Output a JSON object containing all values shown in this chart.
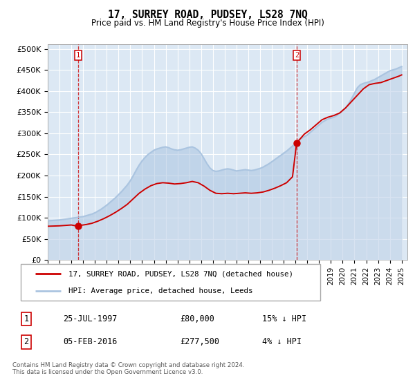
{
  "title": "17, SURREY ROAD, PUDSEY, LS28 7NQ",
  "subtitle": "Price paid vs. HM Land Registry's House Price Index (HPI)",
  "ylabel_ticks": [
    "£0",
    "£50K",
    "£100K",
    "£150K",
    "£200K",
    "£250K",
    "£300K",
    "£350K",
    "£400K",
    "£450K",
    "£500K"
  ],
  "ytick_values": [
    0,
    50000,
    100000,
    150000,
    200000,
    250000,
    300000,
    350000,
    400000,
    450000,
    500000
  ],
  "ylim": [
    0,
    510000
  ],
  "legend_line1": "17, SURREY ROAD, PUDSEY, LS28 7NQ (detached house)",
  "legend_line2": "HPI: Average price, detached house, Leeds",
  "footer": "Contains HM Land Registry data © Crown copyright and database right 2024.\nThis data is licensed under the Open Government Licence v3.0.",
  "hpi_color": "#aac4e0",
  "price_color": "#cc0000",
  "plot_bg": "#dce8f4",
  "grid_color": "#ffffff",
  "marker1_year": 1997.57,
  "marker1_price": 80000,
  "marker2_year": 2016.1,
  "marker2_price": 277500,
  "xmin_year": 1995.0,
  "xmax_year": 2025.5,
  "hpi_years": [
    1995.0,
    1995.25,
    1995.5,
    1995.75,
    1996.0,
    1996.25,
    1996.5,
    1996.75,
    1997.0,
    1997.25,
    1997.5,
    1997.75,
    1998.0,
    1998.25,
    1998.5,
    1998.75,
    1999.0,
    1999.25,
    1999.5,
    1999.75,
    2000.0,
    2000.25,
    2000.5,
    2000.75,
    2001.0,
    2001.25,
    2001.5,
    2001.75,
    2002.0,
    2002.25,
    2002.5,
    2002.75,
    2003.0,
    2003.25,
    2003.5,
    2003.75,
    2004.0,
    2004.25,
    2004.5,
    2004.75,
    2005.0,
    2005.25,
    2005.5,
    2005.75,
    2006.0,
    2006.25,
    2006.5,
    2006.75,
    2007.0,
    2007.25,
    2007.5,
    2007.75,
    2008.0,
    2008.25,
    2008.5,
    2008.75,
    2009.0,
    2009.25,
    2009.5,
    2009.75,
    2010.0,
    2010.25,
    2010.5,
    2010.75,
    2011.0,
    2011.25,
    2011.5,
    2011.75,
    2012.0,
    2012.25,
    2012.5,
    2012.75,
    2013.0,
    2013.25,
    2013.5,
    2013.75,
    2014.0,
    2014.25,
    2014.5,
    2014.75,
    2015.0,
    2015.25,
    2015.5,
    2015.75,
    2016.0,
    2016.25,
    2016.5,
    2016.75,
    2017.0,
    2017.25,
    2017.5,
    2017.75,
    2018.0,
    2018.25,
    2018.5,
    2018.75,
    2019.0,
    2019.25,
    2019.5,
    2019.75,
    2020.0,
    2020.25,
    2020.5,
    2020.75,
    2021.0,
    2021.25,
    2021.5,
    2021.75,
    2022.0,
    2022.25,
    2022.5,
    2022.75,
    2023.0,
    2023.25,
    2023.5,
    2023.75,
    2024.0,
    2024.25,
    2024.5,
    2024.75,
    2025.0
  ],
  "hpi_values": [
    93000,
    93500,
    94000,
    94500,
    95000,
    96000,
    97000,
    98000,
    99000,
    100000,
    101000,
    102000,
    103000,
    105000,
    107000,
    109000,
    112000,
    116000,
    120000,
    125000,
    130000,
    136000,
    142000,
    148000,
    155000,
    162000,
    170000,
    178000,
    188000,
    200000,
    213000,
    225000,
    235000,
    243000,
    250000,
    255000,
    260000,
    263000,
    265000,
    267000,
    268000,
    266000,
    263000,
    261000,
    260000,
    261000,
    263000,
    265000,
    267000,
    268000,
    265000,
    260000,
    252000,
    240000,
    228000,
    218000,
    212000,
    210000,
    211000,
    213000,
    215000,
    216000,
    215000,
    213000,
    211000,
    212000,
    213000,
    214000,
    213000,
    212000,
    213000,
    215000,
    217000,
    220000,
    224000,
    228000,
    233000,
    238000,
    243000,
    248000,
    253000,
    258000,
    264000,
    270000,
    276000,
    282000,
    288000,
    292000,
    296000,
    302000,
    308000,
    314000,
    320000,
    326000,
    330000,
    334000,
    336000,
    338000,
    342000,
    348000,
    354000,
    360000,
    370000,
    382000,
    395000,
    408000,
    415000,
    418000,
    420000,
    422000,
    425000,
    428000,
    432000,
    436000,
    440000,
    444000,
    448000,
    450000,
    452000,
    455000,
    458000
  ],
  "price_years": [
    1995.0,
    1995.5,
    1996.0,
    1996.5,
    1997.0,
    1997.57,
    1997.75,
    1998.25,
    1998.75,
    1999.25,
    1999.75,
    2000.25,
    2000.75,
    2001.25,
    2001.75,
    2002.25,
    2002.75,
    2003.25,
    2003.75,
    2004.25,
    2004.75,
    2005.25,
    2005.75,
    2006.25,
    2006.75,
    2007.25,
    2007.75,
    2008.25,
    2008.75,
    2009.25,
    2009.75,
    2010.25,
    2010.75,
    2011.25,
    2011.75,
    2012.25,
    2012.75,
    2013.25,
    2013.75,
    2014.25,
    2014.75,
    2015.25,
    2015.75,
    2016.1,
    2016.5,
    2016.75,
    2017.25,
    2017.75,
    2018.25,
    2018.75,
    2019.25,
    2019.75,
    2020.25,
    2020.75,
    2021.25,
    2021.75,
    2022.25,
    2022.75,
    2023.25,
    2023.75,
    2024.25,
    2024.75,
    2025.0
  ],
  "price_values": [
    80000,
    80500,
    81000,
    82000,
    83000,
    80000,
    82000,
    84000,
    87000,
    92000,
    98000,
    105000,
    113000,
    122000,
    132000,
    145000,
    158000,
    168000,
    176000,
    181000,
    183000,
    182000,
    180000,
    181000,
    183000,
    186000,
    183000,
    175000,
    165000,
    158000,
    157000,
    158000,
    157000,
    158000,
    159000,
    158000,
    159000,
    161000,
    165000,
    170000,
    176000,
    183000,
    197000,
    277500,
    290000,
    298000,
    308000,
    320000,
    332000,
    338000,
    342000,
    348000,
    360000,
    375000,
    390000,
    405000,
    415000,
    418000,
    420000,
    425000,
    430000,
    435000,
    438000
  ],
  "xtick_years": [
    1995,
    1996,
    1997,
    1998,
    1999,
    2000,
    2001,
    2002,
    2003,
    2004,
    2005,
    2006,
    2007,
    2008,
    2009,
    2010,
    2011,
    2012,
    2013,
    2014,
    2015,
    2016,
    2017,
    2018,
    2019,
    2020,
    2021,
    2022,
    2023,
    2024,
    2025
  ],
  "table_rows": [
    {
      "num": "1",
      "date": "25-JUL-1997",
      "price": "£80,000",
      "hpi": "15% ↓ HPI"
    },
    {
      "num": "2",
      "date": "05-FEB-2016",
      "price": "£277,500",
      "hpi": "4% ↓ HPI"
    }
  ]
}
